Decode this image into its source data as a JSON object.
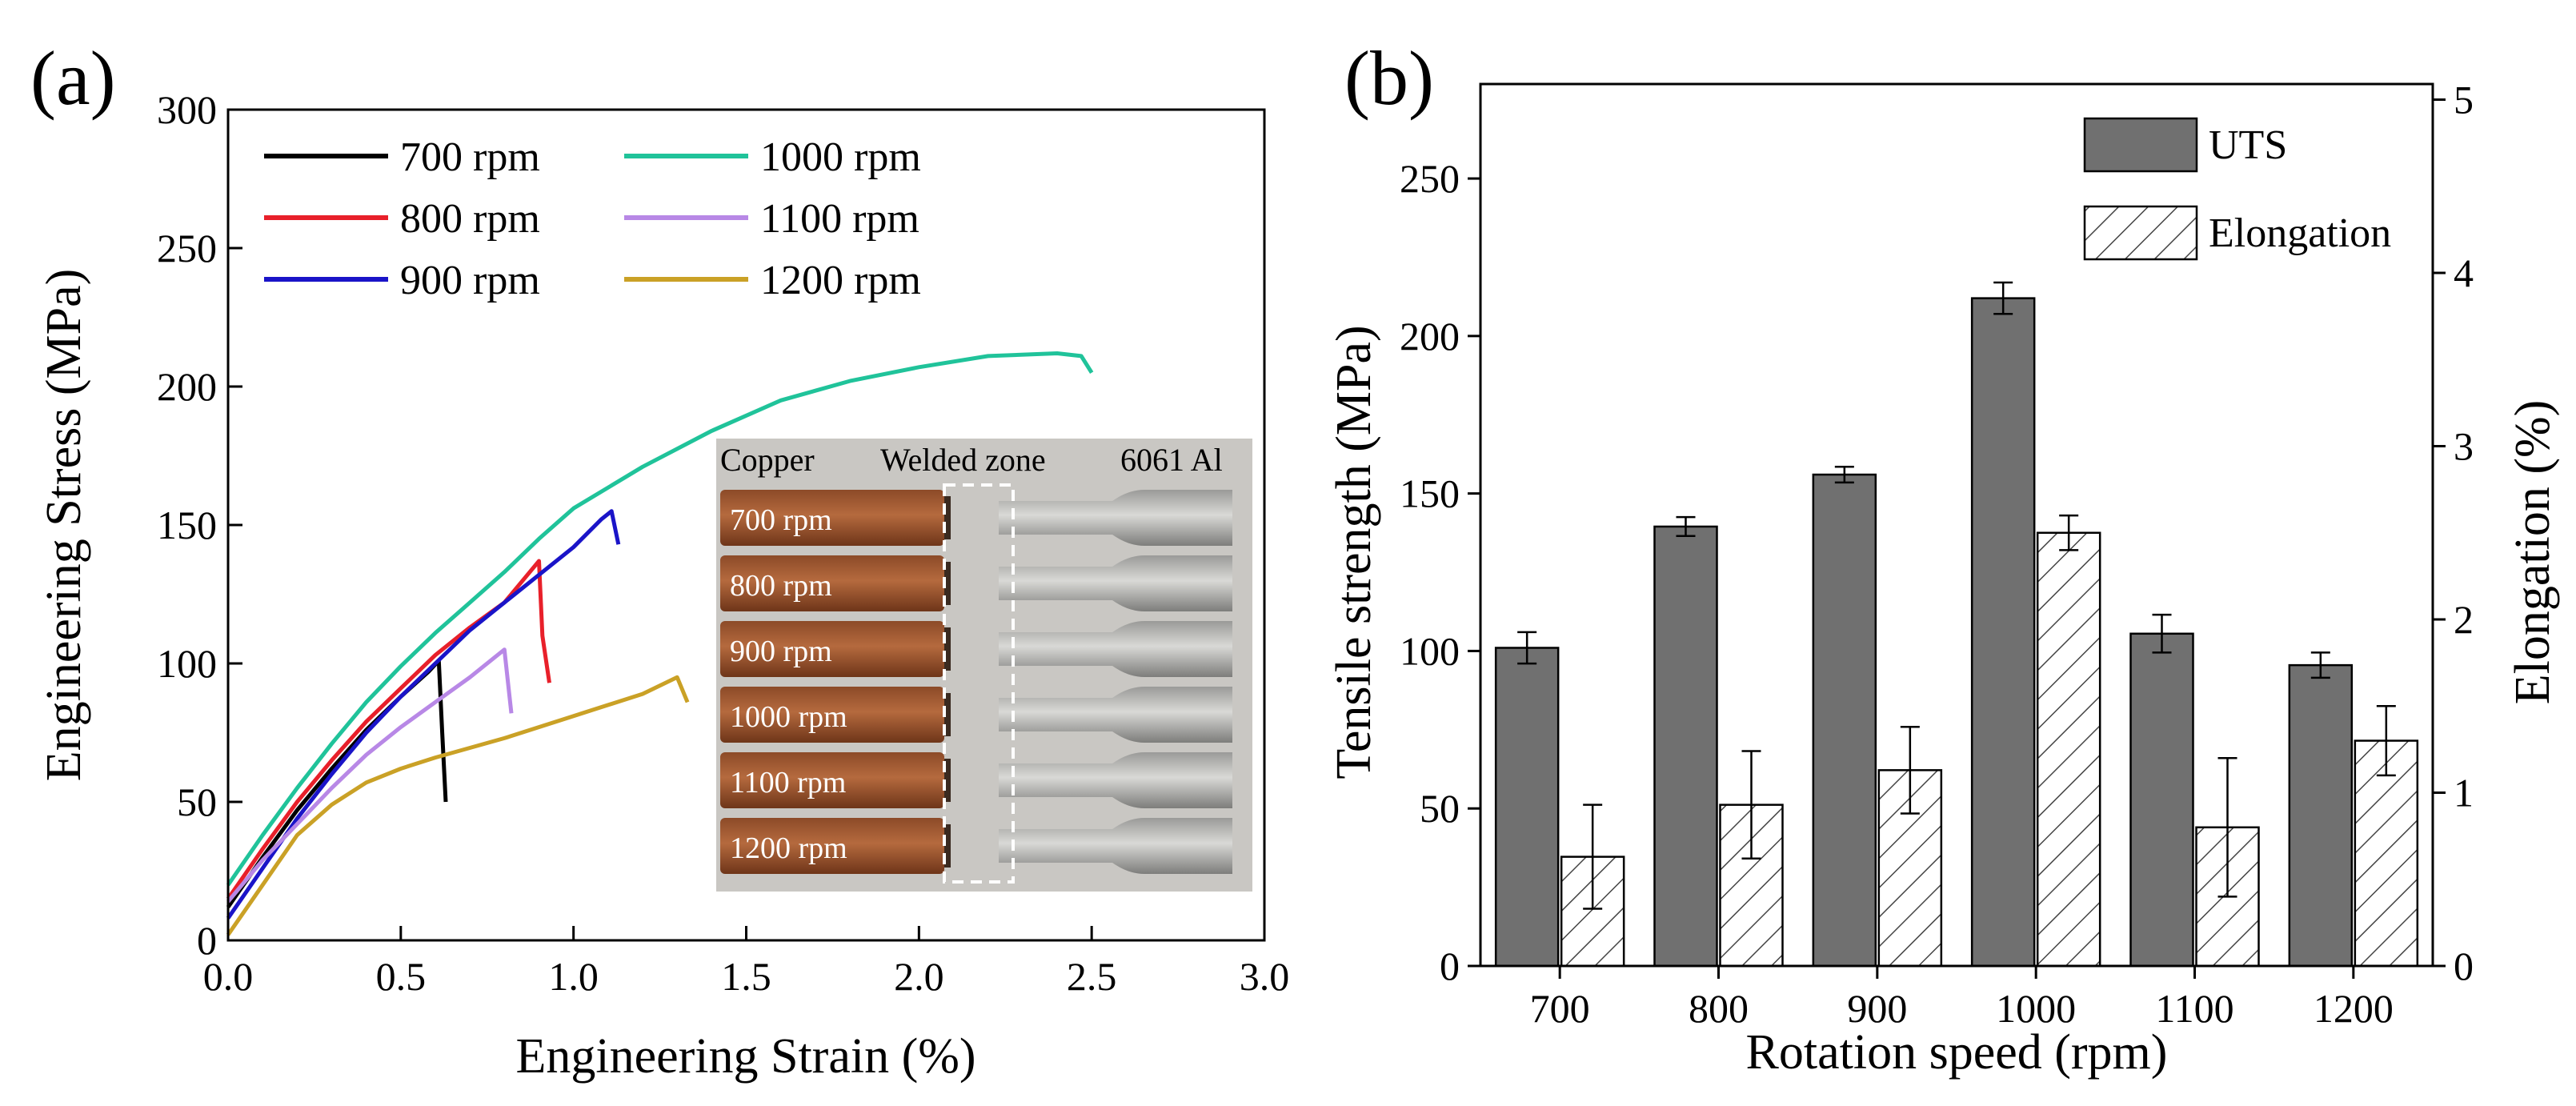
{
  "panel_labels": {
    "a": "(a)",
    "b": "(b)"
  },
  "chart_data": [
    {
      "type": "line",
      "panel": "(a)",
      "xlabel": "Engineering Strain (%)",
      "ylabel": "Engineering Stress (MPa)",
      "xlim": [
        0,
        3.0
      ],
      "ylim": [
        0,
        300
      ],
      "xticks": [
        0.0,
        0.5,
        1.0,
        1.5,
        2.0,
        2.5,
        3.0
      ],
      "xtick_labels": [
        "0.0",
        "0.5",
        "1.0",
        "1.5",
        "2.0",
        "2.5",
        "3.0"
      ],
      "yticks": [
        0,
        50,
        100,
        150,
        200,
        250,
        300
      ],
      "ytick_labels": [
        "0",
        "50",
        "100",
        "150",
        "200",
        "250",
        "300"
      ],
      "legend_position": "top-left",
      "series": [
        {
          "name": "700 rpm",
          "color": "#000000",
          "x": [
            0,
            0.1,
            0.2,
            0.3,
            0.4,
            0.5,
            0.58,
            0.61,
            0.62,
            0.63
          ],
          "y": [
            12,
            30,
            47,
            62,
            76,
            88,
            97,
            101,
            75,
            50
          ]
        },
        {
          "name": "800 rpm",
          "color": "#e8202a",
          "x": [
            0,
            0.1,
            0.2,
            0.3,
            0.4,
            0.5,
            0.6,
            0.7,
            0.8,
            0.9,
            0.91,
            0.93
          ],
          "y": [
            15,
            33,
            50,
            65,
            79,
            91,
            103,
            113,
            122,
            137,
            110,
            93
          ]
        },
        {
          "name": "900 rpm",
          "color": "#1a14c8",
          "x": [
            0,
            0.1,
            0.2,
            0.3,
            0.4,
            0.5,
            0.6,
            0.7,
            0.8,
            0.9,
            1.0,
            1.08,
            1.11,
            1.13
          ],
          "y": [
            8,
            26,
            44,
            60,
            75,
            88,
            100,
            112,
            122,
            132,
            142,
            152,
            155,
            143
          ]
        },
        {
          "name": "1000 rpm",
          "color": "#20c39a",
          "x": [
            0,
            0.1,
            0.2,
            0.3,
            0.4,
            0.5,
            0.6,
            0.7,
            0.8,
            0.9,
            1.0,
            1.2,
            1.4,
            1.6,
            1.8,
            2.0,
            2.2,
            2.4,
            2.47,
            2.5
          ],
          "y": [
            20,
            38,
            55,
            71,
            86,
            99,
            111,
            122,
            133,
            145,
            156,
            171,
            184,
            195,
            202,
            207,
            211,
            212,
            211,
            205
          ]
        },
        {
          "name": "1100 rpm",
          "color": "#b888e6",
          "x": [
            0,
            0.1,
            0.2,
            0.3,
            0.4,
            0.5,
            0.6,
            0.7,
            0.78,
            0.8,
            0.82
          ],
          "y": [
            14,
            29,
            42,
            55,
            67,
            77,
            86,
            95,
            103,
            105,
            82
          ]
        },
        {
          "name": "1200 rpm",
          "color": "#caa126",
          "x": [
            0,
            0.1,
            0.2,
            0.3,
            0.4,
            0.5,
            0.6,
            0.8,
            1.0,
            1.2,
            1.3,
            1.33
          ],
          "y": [
            2,
            20,
            38,
            49,
            57,
            62,
            66,
            73,
            81,
            89,
            95,
            86
          ]
        }
      ],
      "inset": {
        "headers": [
          "Copper",
          "Welded zone",
          "6061 Al"
        ],
        "rows": [
          "700 rpm",
          "800 rpm",
          "900 rpm",
          "1000 rpm",
          "1100 rpm",
          "1200 rpm"
        ]
      }
    },
    {
      "type": "bar",
      "panel": "(b)",
      "xlabel": "Rotation speed (rpm)",
      "ylabel": "Tensile strength (MPa)",
      "y2label": "Elongation (%)",
      "categories": [
        "700",
        "800",
        "900",
        "1000",
        "1100",
        "1200"
      ],
      "ylim": [
        0,
        280
      ],
      "yticks": [
        0,
        50,
        100,
        150,
        200,
        250
      ],
      "ytick_labels": [
        "0",
        "50",
        "100",
        "150",
        "200",
        "250"
      ],
      "y2lim": [
        0,
        5.09
      ],
      "y2ticks": [
        0,
        1,
        2,
        3,
        4,
        5
      ],
      "y2tick_labels": [
        "0",
        "1",
        "2",
        "3",
        "4",
        "5"
      ],
      "legend_position": "top-right",
      "series": [
        {
          "name": "UTS",
          "axis": "left",
          "color": "#707070",
          "values": [
            101,
            139.5,
            156,
            212,
            105.5,
            95.5
          ],
          "errors": [
            5,
            3,
            2.5,
            5,
            6,
            4
          ]
        },
        {
          "name": "Elongation",
          "axis": "right",
          "pattern": "hatch",
          "values": [
            0.63,
            0.93,
            1.13,
            2.5,
            0.8,
            1.3
          ],
          "errors": [
            0.3,
            0.31,
            0.25,
            0.1,
            0.4,
            0.2
          ]
        }
      ]
    }
  ]
}
